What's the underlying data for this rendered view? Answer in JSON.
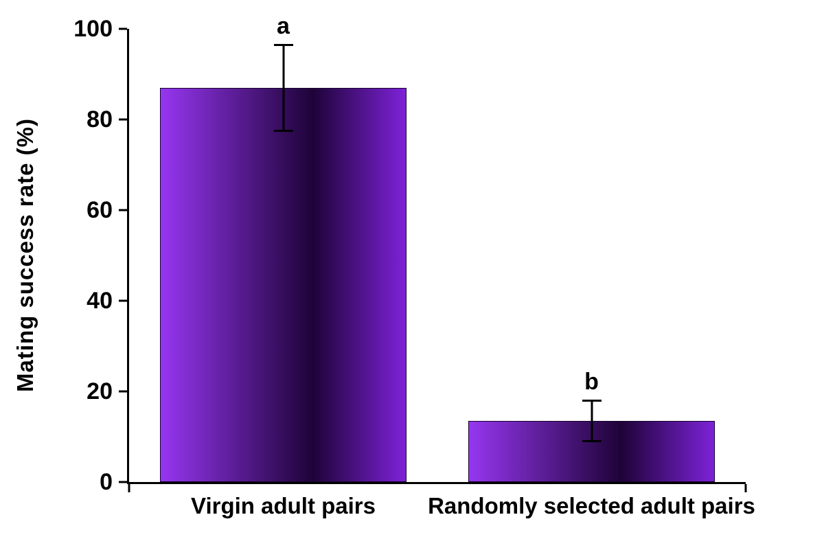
{
  "chart_data": {
    "type": "bar",
    "title": "",
    "xlabel": "",
    "ylabel": "Mating success rate (%)",
    "ylim": [
      0,
      100
    ],
    "yticks": [
      0,
      20,
      40,
      60,
      80,
      100
    ],
    "categories": [
      "Virgin adult pairs",
      "Randomly selected adult pairs"
    ],
    "values": [
      87,
      13.5
    ],
    "errors": [
      9.5,
      4.5
    ],
    "sig_labels": [
      "a",
      "b"
    ],
    "bar_width_pct": 40,
    "bar_gradient": [
      "#9636f0",
      "#1e0338",
      "#7d22d8"
    ],
    "axis_color": "#000000",
    "text_color": "#000000",
    "background": "#ffffff",
    "grid": false,
    "legend": false
  }
}
